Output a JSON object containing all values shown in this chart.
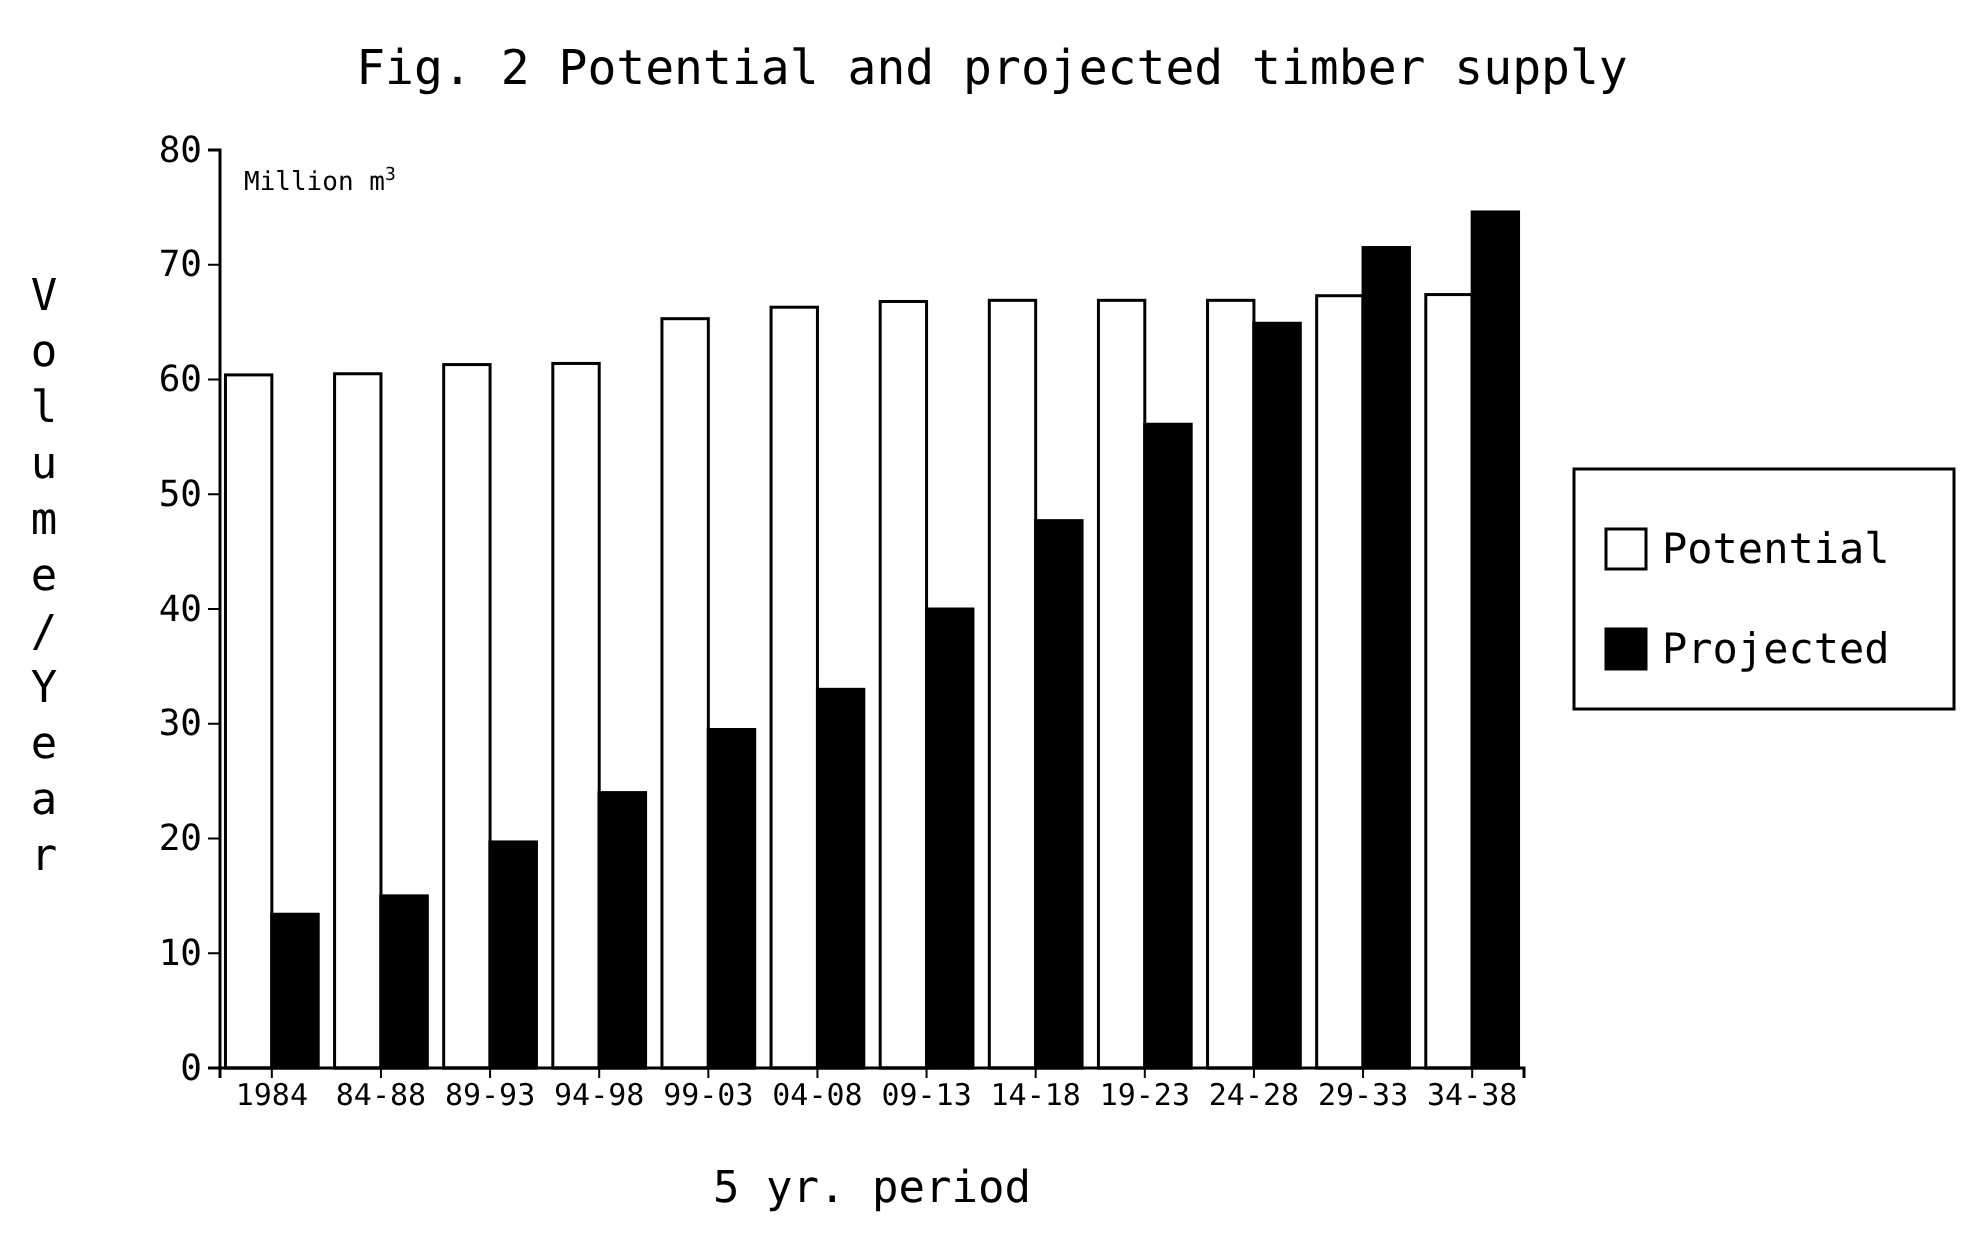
{
  "chart_data": {
    "type": "bar",
    "title": "Fig. 2  Potential and projected timber supply",
    "xlabel": "5 yr. period",
    "ylabel": "Volume/Year",
    "annotations": [
      "Million m$^{3}$"
    ],
    "categories": [
      "1984",
      "84-88",
      "89-93",
      "94-98",
      "99-03",
      "04-08",
      "09-13",
      "14-18",
      "19-23",
      "24-28",
      "29-33",
      "34-38"
    ],
    "series": [
      {
        "name": "Potential",
        "color": "#ffffff",
        "values": [
          60.4,
          60.5,
          61.3,
          61.4,
          65.3,
          66.3,
          66.8,
          66.9,
          66.9,
          66.9,
          67.3,
          67.4
        ]
      },
      {
        "name": "Projected",
        "color": "#000000",
        "values": [
          13.4,
          15.0,
          19.7,
          24.0,
          29.5,
          33.0,
          40.0,
          47.7,
          56.1,
          64.9,
          71.5,
          74.6
        ]
      }
    ],
    "ylim": [
      0,
      80
    ],
    "yticks": [
      0,
      10,
      20,
      30,
      40,
      50,
      60,
      70,
      80
    ],
    "grid": false,
    "legend": "right"
  }
}
